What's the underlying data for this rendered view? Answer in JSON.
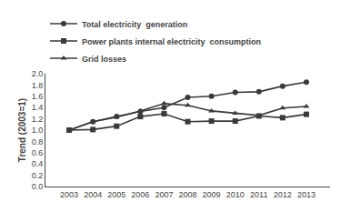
{
  "chart_data": {
    "type": "line",
    "x": [
      2003,
      2004,
      2005,
      2006,
      2007,
      2008,
      2009,
      2010,
      2011,
      2012,
      2013
    ],
    "series": [
      {
        "name": "Total electricity  generation",
        "color": "#3a3a3a",
        "marker": "circle",
        "values": [
          1.0,
          1.15,
          1.24,
          1.33,
          1.4,
          1.58,
          1.6,
          1.67,
          1.68,
          1.78,
          1.85
        ]
      },
      {
        "name": "Power plants internal electricity  consumption",
        "color": "#3a3a3a",
        "marker": "square",
        "values": [
          1.0,
          1.01,
          1.07,
          1.24,
          1.29,
          1.15,
          1.16,
          1.16,
          1.25,
          1.22,
          1.28
        ]
      },
      {
        "name": "Grid losses",
        "color": "#3a3a3a",
        "marker": "triangle-up",
        "values": [
          1.0,
          1.15,
          1.23,
          1.34,
          1.47,
          1.44,
          1.34,
          1.3,
          1.26,
          1.39,
          1.42
        ]
      }
    ],
    "y_label": "Trend (2003=1)",
    "xlim": [
      2002,
      2014
    ],
    "xticks": [
      2003,
      2004,
      2005,
      2006,
      2007,
      2008,
      2009,
      2010,
      2011,
      2012,
      2013
    ],
    "ylim": [
      0.0,
      2.0
    ],
    "yticks": [
      {
        "value": 0.0,
        "label": "0.0"
      },
      {
        "value": 0.2,
        "label": "0.2"
      },
      {
        "value": 0.4,
        "label": "0.4"
      },
      {
        "value": 0.6,
        "label": "0.6"
      },
      {
        "value": 0.8,
        "label": "0.8"
      },
      {
        "value": 1.0,
        "label": "1.0"
      },
      {
        "value": 1.2,
        "label": "1.2"
      },
      {
        "value": 1.4,
        "label": "1.4"
      },
      {
        "value": 1.6,
        "label": "1.6"
      },
      {
        "value": 1.8,
        "label": "1.8"
      },
      {
        "value": 2.0,
        "label": "2.0"
      }
    ],
    "grid": false,
    "legend": "upper left"
  }
}
